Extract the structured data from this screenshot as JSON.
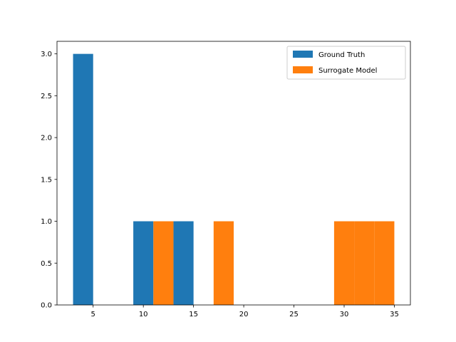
{
  "chart_data": {
    "type": "bar",
    "title": "",
    "xlabel": "",
    "ylabel": "",
    "xlim": [
      1.4,
      36.6
    ],
    "ylim": [
      0,
      3.15
    ],
    "xticks": [
      5,
      10,
      15,
      20,
      25,
      30,
      35
    ],
    "yticks": [
      0.0,
      0.5,
      1.0,
      1.5,
      2.0,
      2.5,
      3.0
    ],
    "xtick_labels": [
      "5",
      "10",
      "15",
      "20",
      "25",
      "30",
      "35"
    ],
    "ytick_labels": [
      "0.0",
      "0.5",
      "1.0",
      "1.5",
      "2.0",
      "2.5",
      "3.0"
    ],
    "grid": false,
    "legend_position": "top-right",
    "series": [
      {
        "name": "Ground Truth",
        "color": "#1f77b4",
        "bars": [
          {
            "x0": 3,
            "x1": 5,
            "count": 3
          },
          {
            "x0": 9,
            "x1": 11,
            "count": 1
          },
          {
            "x0": 13,
            "x1": 15,
            "count": 1
          }
        ]
      },
      {
        "name": "Surrogate Model",
        "color": "#ff7f0e",
        "bars": [
          {
            "x0": 11,
            "x1": 13,
            "count": 1
          },
          {
            "x0": 17,
            "x1": 19,
            "count": 1
          },
          {
            "x0": 29,
            "x1": 31,
            "count": 1
          },
          {
            "x0": 31,
            "x1": 33,
            "count": 1
          },
          {
            "x0": 33,
            "x1": 35,
            "count": 1
          }
        ]
      }
    ]
  }
}
